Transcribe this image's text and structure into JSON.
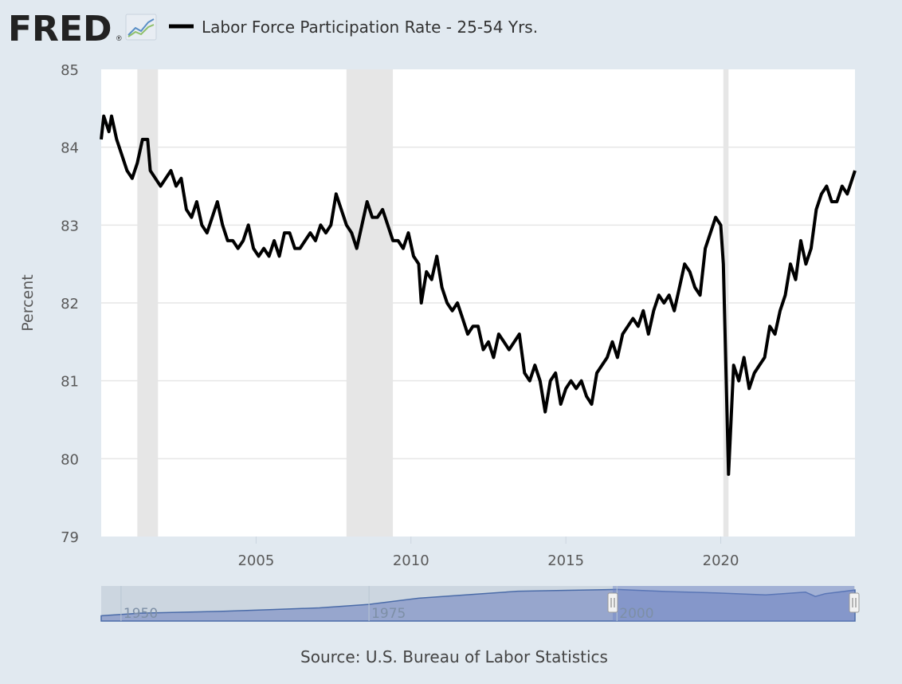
{
  "header": {
    "logo_text": "FRED",
    "logo_reg": "®",
    "logo_icon": "trend-line-icon"
  },
  "footer": {
    "source": "Source: U.S. Bureau of Labor Statistics"
  },
  "colors": {
    "background": "#e1e9f0",
    "plot_background": "#ffffff",
    "series_line": "#000000",
    "recession_band": "#e6e6e6",
    "grid": "#e6e6e6",
    "navigator_fill": "#8598c9",
    "navigator_line": "#4a6ba8"
  },
  "chart_data": {
    "type": "line",
    "title": "",
    "xlabel": "",
    "ylabel": "Percent",
    "x_axis": "date",
    "xlim": [
      "2000-01",
      "2024-05"
    ],
    "ylim": [
      79,
      85
    ],
    "y_ticks": [
      79,
      80,
      81,
      82,
      83,
      84,
      85
    ],
    "x_ticks": [
      "2005",
      "2010",
      "2015",
      "2020"
    ],
    "grid": "horizontal",
    "legend_position": "top-left",
    "recession_periods": [
      {
        "start": "2001-03",
        "end": "2001-11"
      },
      {
        "start": "2007-12",
        "end": "2009-06"
      },
      {
        "start": "2020-02",
        "end": "2020-04"
      }
    ],
    "series": [
      {
        "name": "Labor Force Participation Rate - 25-54 Yrs.",
        "points": [
          [
            "2000-01",
            84.1
          ],
          [
            "2000-02",
            84.4
          ],
          [
            "2000-04",
            84.2
          ],
          [
            "2000-05",
            84.4
          ],
          [
            "2000-07",
            84.1
          ],
          [
            "2000-09",
            83.9
          ],
          [
            "2000-11",
            83.7
          ],
          [
            "2001-01",
            83.6
          ],
          [
            "2001-03",
            83.8
          ],
          [
            "2001-05",
            84.1
          ],
          [
            "2001-07",
            84.1
          ],
          [
            "2001-08",
            83.7
          ],
          [
            "2001-10",
            83.6
          ],
          [
            "2001-12",
            83.5
          ],
          [
            "2002-02",
            83.6
          ],
          [
            "2002-04",
            83.7
          ],
          [
            "2002-06",
            83.5
          ],
          [
            "2002-08",
            83.6
          ],
          [
            "2002-10",
            83.2
          ],
          [
            "2002-12",
            83.1
          ],
          [
            "2003-02",
            83.3
          ],
          [
            "2003-04",
            83.0
          ],
          [
            "2003-06",
            82.9
          ],
          [
            "2003-08",
            83.1
          ],
          [
            "2003-10",
            83.3
          ],
          [
            "2003-12",
            83.0
          ],
          [
            "2004-02",
            82.8
          ],
          [
            "2004-04",
            82.8
          ],
          [
            "2004-06",
            82.7
          ],
          [
            "2004-08",
            82.8
          ],
          [
            "2004-10",
            83.0
          ],
          [
            "2004-12",
            82.7
          ],
          [
            "2005-02",
            82.6
          ],
          [
            "2005-04",
            82.7
          ],
          [
            "2005-06",
            82.6
          ],
          [
            "2005-08",
            82.8
          ],
          [
            "2005-10",
            82.6
          ],
          [
            "2005-12",
            82.9
          ],
          [
            "2006-02",
            82.9
          ],
          [
            "2006-04",
            82.7
          ],
          [
            "2006-06",
            82.7
          ],
          [
            "2006-08",
            82.8
          ],
          [
            "2006-10",
            82.9
          ],
          [
            "2006-12",
            82.8
          ],
          [
            "2007-02",
            83.0
          ],
          [
            "2007-04",
            82.9
          ],
          [
            "2007-06",
            83.0
          ],
          [
            "2007-08",
            83.4
          ],
          [
            "2007-10",
            83.2
          ],
          [
            "2007-12",
            83.0
          ],
          [
            "2008-02",
            82.9
          ],
          [
            "2008-04",
            82.7
          ],
          [
            "2008-06",
            83.0
          ],
          [
            "2008-08",
            83.3
          ],
          [
            "2008-10",
            83.1
          ],
          [
            "2008-12",
            83.1
          ],
          [
            "2009-02",
            83.2
          ],
          [
            "2009-04",
            83.0
          ],
          [
            "2009-06",
            82.8
          ],
          [
            "2009-08",
            82.8
          ],
          [
            "2009-10",
            82.7
          ],
          [
            "2009-12",
            82.9
          ],
          [
            "2010-02",
            82.6
          ],
          [
            "2010-04",
            82.5
          ],
          [
            "2010-05",
            82.0
          ],
          [
            "2010-07",
            82.4
          ],
          [
            "2010-09",
            82.3
          ],
          [
            "2010-11",
            82.6
          ],
          [
            "2011-01",
            82.2
          ],
          [
            "2011-03",
            82.0
          ],
          [
            "2011-05",
            81.9
          ],
          [
            "2011-07",
            82.0
          ],
          [
            "2011-09",
            81.8
          ],
          [
            "2011-11",
            81.6
          ],
          [
            "2012-01",
            81.7
          ],
          [
            "2012-03",
            81.7
          ],
          [
            "2012-05",
            81.4
          ],
          [
            "2012-07",
            81.5
          ],
          [
            "2012-09",
            81.3
          ],
          [
            "2012-11",
            81.6
          ],
          [
            "2013-01",
            81.5
          ],
          [
            "2013-03",
            81.4
          ],
          [
            "2013-05",
            81.5
          ],
          [
            "2013-07",
            81.6
          ],
          [
            "2013-09",
            81.1
          ],
          [
            "2013-11",
            81.0
          ],
          [
            "2014-01",
            81.2
          ],
          [
            "2014-03",
            81.0
          ],
          [
            "2014-05",
            80.6
          ],
          [
            "2014-07",
            81.0
          ],
          [
            "2014-09",
            81.1
          ],
          [
            "2014-11",
            80.7
          ],
          [
            "2015-01",
            80.9
          ],
          [
            "2015-03",
            81.0
          ],
          [
            "2015-05",
            80.9
          ],
          [
            "2015-07",
            81.0
          ],
          [
            "2015-09",
            80.8
          ],
          [
            "2015-11",
            80.7
          ],
          [
            "2016-01",
            81.1
          ],
          [
            "2016-03",
            81.2
          ],
          [
            "2016-05",
            81.3
          ],
          [
            "2016-07",
            81.5
          ],
          [
            "2016-09",
            81.3
          ],
          [
            "2016-11",
            81.6
          ],
          [
            "2017-01",
            81.7
          ],
          [
            "2017-03",
            81.8
          ],
          [
            "2017-05",
            81.7
          ],
          [
            "2017-07",
            81.9
          ],
          [
            "2017-09",
            81.6
          ],
          [
            "2017-11",
            81.9
          ],
          [
            "2018-01",
            82.1
          ],
          [
            "2018-03",
            82.0
          ],
          [
            "2018-05",
            82.1
          ],
          [
            "2018-07",
            81.9
          ],
          [
            "2018-09",
            82.2
          ],
          [
            "2018-11",
            82.5
          ],
          [
            "2019-01",
            82.4
          ],
          [
            "2019-03",
            82.2
          ],
          [
            "2019-05",
            82.1
          ],
          [
            "2019-07",
            82.7
          ],
          [
            "2019-09",
            82.9
          ],
          [
            "2019-11",
            83.1
          ],
          [
            "2020-01",
            83.0
          ],
          [
            "2020-02",
            82.5
          ],
          [
            "2020-04",
            79.8
          ],
          [
            "2020-06",
            81.2
          ],
          [
            "2020-08",
            81.0
          ],
          [
            "2020-10",
            81.3
          ],
          [
            "2020-12",
            80.9
          ],
          [
            "2021-02",
            81.1
          ],
          [
            "2021-04",
            81.2
          ],
          [
            "2021-06",
            81.3
          ],
          [
            "2021-08",
            81.7
          ],
          [
            "2021-10",
            81.6
          ],
          [
            "2021-12",
            81.9
          ],
          [
            "2022-02",
            82.1
          ],
          [
            "2022-04",
            82.5
          ],
          [
            "2022-06",
            82.3
          ],
          [
            "2022-08",
            82.8
          ],
          [
            "2022-10",
            82.5
          ],
          [
            "2022-12",
            82.7
          ],
          [
            "2023-02",
            83.2
          ],
          [
            "2023-04",
            83.4
          ],
          [
            "2023-06",
            83.5
          ],
          [
            "2023-08",
            83.3
          ],
          [
            "2023-10",
            83.3
          ],
          [
            "2023-12",
            83.5
          ],
          [
            "2024-02",
            83.4
          ],
          [
            "2024-05",
            83.7
          ]
        ]
      }
    ],
    "navigator": {
      "xlim": [
        "1948",
        "2024"
      ],
      "tick_labels": [
        "1950",
        "1975",
        "2000"
      ],
      "selected_range": [
        "2000",
        "2024"
      ],
      "series": [
        [
          "1948",
          69.0
        ],
        [
          "1952",
          70.5
        ],
        [
          "1956",
          71.0
        ],
        [
          "1960",
          71.5
        ],
        [
          "1965",
          72.5
        ],
        [
          "1970",
          73.5
        ],
        [
          "1975",
          75.5
        ],
        [
          "1980",
          79.0
        ],
        [
          "1985",
          81.0
        ],
        [
          "1990",
          83.0
        ],
        [
          "1995",
          83.5
        ],
        [
          "2000",
          84.0
        ],
        [
          "2005",
          82.8
        ],
        [
          "2010",
          82.0
        ],
        [
          "2015",
          80.9
        ],
        [
          "2019",
          82.5
        ],
        [
          "2020",
          80.0
        ],
        [
          "2021",
          81.6
        ],
        [
          "2024",
          83.7
        ]
      ]
    }
  }
}
